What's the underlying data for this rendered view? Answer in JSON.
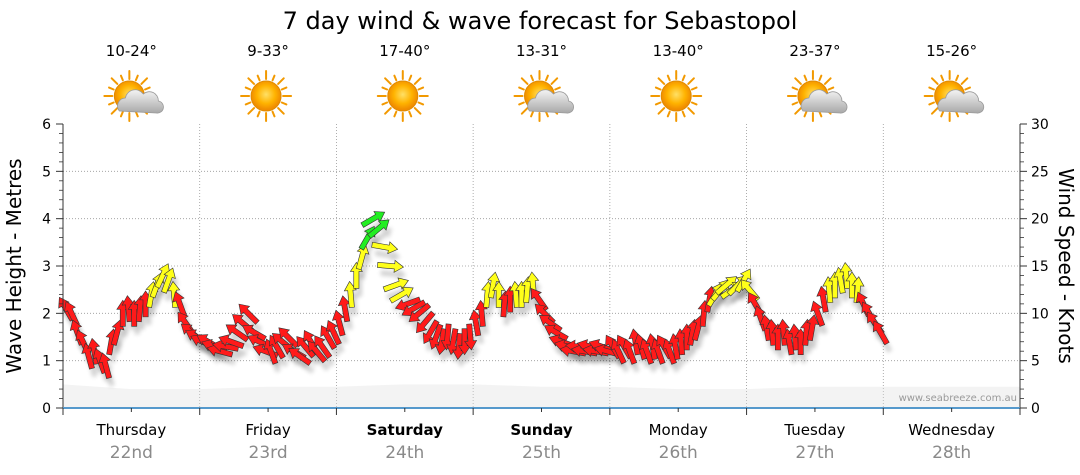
{
  "colors": {
    "red": "#ff1a1a",
    "yellow": "#ffff1a",
    "green": "#22ee22",
    "grid": "#999999",
    "axis": "#333333",
    "swell": "#dddddd"
  },
  "chart_data": {
    "type": "line",
    "title": "7 day wind & wave forecast for Sebastopol",
    "ylabel_left": "Wave Height - Metres",
    "ylabel_right": "Wind Speed - Knots",
    "ylim_left": [
      0,
      6
    ],
    "ylim_right": [
      0,
      30
    ],
    "yticks_left": [
      "0",
      "1",
      "2",
      "3",
      "4",
      "5",
      "6"
    ],
    "yticks_right": [
      "0",
      "5",
      "10",
      "15",
      "20",
      "25",
      "30"
    ],
    "watermark": "www.seabreeze.com.au",
    "days": [
      {
        "day": "Thursday",
        "date": "22nd",
        "temp": "10-24°",
        "weather": "partly-cloudy-icon",
        "bold": false
      },
      {
        "day": "Friday",
        "date": "23rd",
        "temp": "9-33°",
        "weather": "sunny-icon",
        "bold": false
      },
      {
        "day": "Saturday",
        "date": "24th",
        "temp": "17-40°",
        "weather": "sunny-icon",
        "bold": true
      },
      {
        "day": "Sunday",
        "date": "25th",
        "temp": "13-31°",
        "weather": "partly-cloudy-icon",
        "bold": true
      },
      {
        "day": "Monday",
        "date": "26th",
        "temp": "13-40°",
        "weather": "sunny-icon",
        "bold": false
      },
      {
        "day": "Tuesday",
        "date": "27th",
        "temp": "23-37°",
        "weather": "partly-cloudy-icon",
        "bold": false
      },
      {
        "day": "Wednesday",
        "date": "28th",
        "temp": "15-26°",
        "weather": "partly-cloudy-icon",
        "bold": false
      }
    ],
    "wave_height_series": {
      "name": "Wave Height (m)",
      "x_hours": [
        0,
        12,
        24,
        36,
        48,
        60,
        72,
        84,
        96,
        108,
        120,
        132,
        144,
        156,
        168
      ],
      "values": [
        0.5,
        0.4,
        0.4,
        0.45,
        0.45,
        0.5,
        0.5,
        0.45,
        0.45,
        0.4,
        0.4,
        0.45,
        0.45,
        0.45,
        0.45
      ]
    },
    "wind_series": {
      "name": "Wind Speed (knots) with direction (arrow angle, degrees clockwise from pointing right)",
      "points": [
        {
          "h": 0,
          "kn": 10.5,
          "dir": -120
        },
        {
          "h": 1,
          "kn": 10,
          "dir": -115
        },
        {
          "h": 2,
          "kn": 8,
          "dir": -110
        },
        {
          "h": 3,
          "kn": 7,
          "dir": -115
        },
        {
          "h": 4,
          "kn": 5.5,
          "dir": -105
        },
        {
          "h": 5,
          "kn": 6,
          "dir": -100
        },
        {
          "h": 6,
          "kn": 5,
          "dir": -110
        },
        {
          "h": 7,
          "kn": 4.5,
          "dir": -105
        },
        {
          "h": 8,
          "kn": 7,
          "dir": -80
        },
        {
          "h": 9,
          "kn": 8,
          "dir": -75
        },
        {
          "h": 10,
          "kn": 10,
          "dir": -90
        },
        {
          "h": 11,
          "kn": 10.5,
          "dir": -95
        },
        {
          "h": 12,
          "kn": 10,
          "dir": -90
        },
        {
          "h": 13,
          "kn": 10.5,
          "dir": -85
        },
        {
          "h": 14,
          "kn": 11,
          "dir": -90
        },
        {
          "h": 15,
          "kn": 12,
          "dir": -80
        },
        {
          "h": 16,
          "kn": 13,
          "dir": -70
        },
        {
          "h": 17,
          "kn": 14,
          "dir": -65
        },
        {
          "h": 18,
          "kn": 13.5,
          "dir": -70
        },
        {
          "h": 19,
          "kn": 12,
          "dir": -95
        },
        {
          "h": 20,
          "kn": 11,
          "dir": -110
        },
        {
          "h": 21,
          "kn": 9,
          "dir": -125
        },
        {
          "h": 22,
          "kn": 8,
          "dir": -140
        },
        {
          "h": 23,
          "kn": 7.5,
          "dir": -150
        },
        {
          "h": 24,
          "kn": 7,
          "dir": -155
        },
        {
          "h": 25,
          "kn": 7,
          "dir": -150
        },
        {
          "h": 26,
          "kn": 6.5,
          "dir": -160
        },
        {
          "h": 27,
          "kn": 6,
          "dir": -165
        },
        {
          "h": 28,
          "kn": 6.5,
          "dir": -170
        },
        {
          "h": 29,
          "kn": 7,
          "dir": -160
        },
        {
          "h": 30,
          "kn": 8,
          "dir": -145
        },
        {
          "h": 31,
          "kn": 9,
          "dir": -140
        },
        {
          "h": 32,
          "kn": 10,
          "dir": -135
        },
        {
          "h": 33,
          "kn": 8,
          "dir": -150
        },
        {
          "h": 34,
          "kn": 7,
          "dir": -155
        },
        {
          "h": 35,
          "kn": 6,
          "dir": -160
        },
        {
          "h": 36,
          "kn": 6,
          "dir": -110
        },
        {
          "h": 37,
          "kn": 6.5,
          "dir": -120
        },
        {
          "h": 38,
          "kn": 7,
          "dir": -140
        },
        {
          "h": 39,
          "kn": 7.5,
          "dir": -135
        },
        {
          "h": 40,
          "kn": 6,
          "dir": -150
        },
        {
          "h": 41,
          "kn": 5.5,
          "dir": -145
        },
        {
          "h": 42,
          "kn": 6.5,
          "dir": -130
        },
        {
          "h": 43,
          "kn": 7,
          "dir": -120
        },
        {
          "h": 44,
          "kn": 6,
          "dir": -130
        },
        {
          "h": 45,
          "kn": 6.5,
          "dir": -125
        },
        {
          "h": 46,
          "kn": 7.5,
          "dir": -120
        },
        {
          "h": 47,
          "kn": 8,
          "dir": -115
        },
        {
          "h": 48,
          "kn": 9,
          "dir": -105
        },
        {
          "h": 49,
          "kn": 10.5,
          "dir": -100
        },
        {
          "h": 50,
          "kn": 12,
          "dir": -95
        },
        {
          "h": 51,
          "kn": 14,
          "dir": -90
        },
        {
          "h": 52,
          "kn": 16,
          "dir": -75
        },
        {
          "h": 53,
          "kn": 18,
          "dir": -60
        },
        {
          "h": 54,
          "kn": 20,
          "dir": -30
        },
        {
          "h": 55,
          "kn": 19,
          "dir": -40
        },
        {
          "h": 56,
          "kn": 17,
          "dir": 10
        },
        {
          "h": 57,
          "kn": 15,
          "dir": 5
        },
        {
          "h": 58,
          "kn": 13,
          "dir": -20
        },
        {
          "h": 59,
          "kn": 12,
          "dir": -30
        },
        {
          "h": 60,
          "kn": 11,
          "dir": 160
        },
        {
          "h": 61,
          "kn": 10.5,
          "dir": 150
        },
        {
          "h": 62,
          "kn": 10,
          "dir": 140
        },
        {
          "h": 63,
          "kn": 9,
          "dir": 130
        },
        {
          "h": 64,
          "kn": 8,
          "dir": 120
        },
        {
          "h": 65,
          "kn": 7.5,
          "dir": 110
        },
        {
          "h": 66,
          "kn": 7,
          "dir": 100
        },
        {
          "h": 67,
          "kn": 7.5,
          "dir": 95
        },
        {
          "h": 68,
          "kn": 7,
          "dir": 100
        },
        {
          "h": 69,
          "kn": 6.5,
          "dir": 95
        },
        {
          "h": 70,
          "kn": 7,
          "dir": 90
        },
        {
          "h": 71,
          "kn": 7.5,
          "dir": 85
        },
        {
          "h": 72,
          "kn": 9,
          "dir": -100
        },
        {
          "h": 73,
          "kn": 10,
          "dir": -95
        },
        {
          "h": 74,
          "kn": 12,
          "dir": -85
        },
        {
          "h": 75,
          "kn": 13,
          "dir": -80
        },
        {
          "h": 76,
          "kn": 12,
          "dir": -90
        },
        {
          "h": 77,
          "kn": 11,
          "dir": -85
        },
        {
          "h": 78,
          "kn": 11.5,
          "dir": -90
        },
        {
          "h": 79,
          "kn": 12,
          "dir": -95
        },
        {
          "h": 80,
          "kn": 12,
          "dir": -90
        },
        {
          "h": 81,
          "kn": 12.5,
          "dir": -85
        },
        {
          "h": 82,
          "kn": 13,
          "dir": -95
        },
        {
          "h": 83,
          "kn": 11.5,
          "dir": -125
        },
        {
          "h": 84,
          "kn": 10,
          "dir": -135
        },
        {
          "h": 85,
          "kn": 9,
          "dir": -145
        },
        {
          "h": 86,
          "kn": 8,
          "dir": -150
        },
        {
          "h": 87,
          "kn": 7,
          "dir": -160
        },
        {
          "h": 88,
          "kn": 6.5,
          "dir": -165
        },
        {
          "h": 89,
          "kn": 6,
          "dir": -170
        },
        {
          "h": 90,
          "kn": 6.5,
          "dir": -175
        },
        {
          "h": 91,
          "kn": 6,
          "dir": -170
        },
        {
          "h": 92,
          "kn": 6.5,
          "dir": -165
        },
        {
          "h": 93,
          "kn": 6,
          "dir": -170
        },
        {
          "h": 94,
          "kn": 6.5,
          "dir": -160
        },
        {
          "h": 95,
          "kn": 6,
          "dir": -165
        },
        {
          "h": 96,
          "kn": 6.5,
          "dir": -120
        },
        {
          "h": 97,
          "kn": 6,
          "dir": -115
        },
        {
          "h": 98,
          "kn": 6.5,
          "dir": -120
        },
        {
          "h": 99,
          "kn": 6,
          "dir": -110
        },
        {
          "h": 100,
          "kn": 7,
          "dir": -100
        },
        {
          "h": 101,
          "kn": 6.5,
          "dir": -105
        },
        {
          "h": 102,
          "kn": 6,
          "dir": -110
        },
        {
          "h": 103,
          "kn": 6.5,
          "dir": -100
        },
        {
          "h": 104,
          "kn": 6,
          "dir": -110
        },
        {
          "h": 105,
          "kn": 6.5,
          "dir": -120
        },
        {
          "h": 106,
          "kn": 6,
          "dir": -110
        },
        {
          "h": 107,
          "kn": 6.5,
          "dir": -100
        },
        {
          "h": 108,
          "kn": 7,
          "dir": -95
        },
        {
          "h": 109,
          "kn": 7.5,
          "dir": -90
        },
        {
          "h": 110,
          "kn": 8,
          "dir": -80
        },
        {
          "h": 111,
          "kn": 8.5,
          "dir": -75
        },
        {
          "h": 112,
          "kn": 10,
          "dir": -85
        },
        {
          "h": 113,
          "kn": 11.5,
          "dir": -80
        },
        {
          "h": 114,
          "kn": 12,
          "dir": -60
        },
        {
          "h": 115,
          "kn": 12.5,
          "dir": -50
        },
        {
          "h": 116,
          "kn": 13,
          "dir": -40
        },
        {
          "h": 117,
          "kn": 12.5,
          "dir": -35
        },
        {
          "h": 118,
          "kn": 13,
          "dir": -45
        },
        {
          "h": 119,
          "kn": 13.5,
          "dir": -60
        },
        {
          "h": 120,
          "kn": 12.5,
          "dir": -130
        },
        {
          "h": 121,
          "kn": 11,
          "dir": -120
        },
        {
          "h": 122,
          "kn": 9.5,
          "dir": -110
        },
        {
          "h": 123,
          "kn": 8.5,
          "dir": -100
        },
        {
          "h": 124,
          "kn": 8,
          "dir": -95
        },
        {
          "h": 125,
          "kn": 7.5,
          "dir": -90
        },
        {
          "h": 126,
          "kn": 8,
          "dir": -95
        },
        {
          "h": 127,
          "kn": 7,
          "dir": -100
        },
        {
          "h": 128,
          "kn": 7.5,
          "dir": -95
        },
        {
          "h": 129,
          "kn": 7,
          "dir": -90
        },
        {
          "h": 130,
          "kn": 8,
          "dir": -85
        },
        {
          "h": 131,
          "kn": 8.5,
          "dir": -80
        },
        {
          "h": 132,
          "kn": 10,
          "dir": -110
        },
        {
          "h": 133,
          "kn": 11.5,
          "dir": -100
        },
        {
          "h": 134,
          "kn": 12.5,
          "dir": -95
        },
        {
          "h": 135,
          "kn": 13,
          "dir": -90
        },
        {
          "h": 136,
          "kn": 13.5,
          "dir": -100
        },
        {
          "h": 137,
          "kn": 14,
          "dir": -95
        },
        {
          "h": 138,
          "kn": 13,
          "dir": -90
        },
        {
          "h": 139,
          "kn": 12.5,
          "dir": -85
        },
        {
          "h": 140,
          "kn": 11,
          "dir": -115
        },
        {
          "h": 141,
          "kn": 10,
          "dir": -120
        },
        {
          "h": 142,
          "kn": 9,
          "dir": -125
        },
        {
          "h": 143,
          "kn": 8,
          "dir": -120
        }
      ]
    }
  }
}
